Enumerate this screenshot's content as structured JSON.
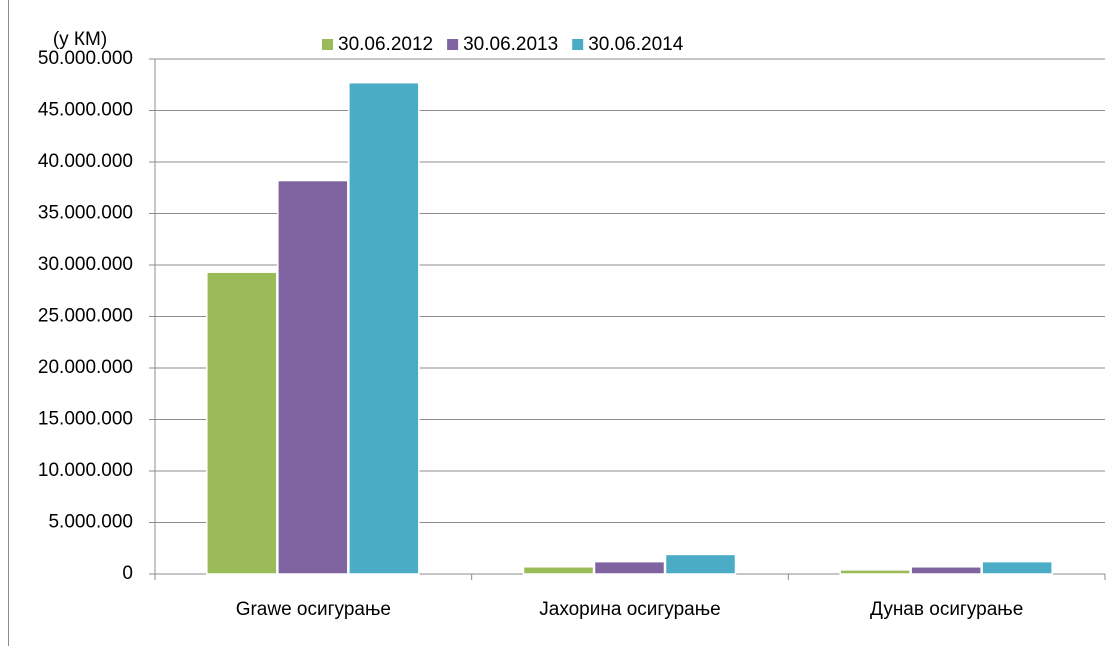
{
  "chart_data": {
    "type": "bar",
    "y_axis_label": "(у КМ)",
    "categories": [
      "Grawe осигурање",
      "Јахорина осигурање",
      "Дунав осигурање"
    ],
    "series": [
      {
        "name": "30.06.2012",
        "color": "#9bbb59",
        "values": [
          29300000,
          700000,
          400000
        ]
      },
      {
        "name": "30.06.2013",
        "color": "#8064a2",
        "values": [
          38200000,
          1200000,
          700000
        ]
      },
      {
        "name": "30.06.2014",
        "color": "#4bacc6",
        "values": [
          47700000,
          1900000,
          1200000
        ]
      }
    ],
    "ylim": [
      0,
      50000000
    ],
    "yticks": [
      0,
      {
        "value": 5000000,
        "label": "5.000.000"
      },
      {
        "value": 10000000,
        "label": "10.000.000"
      },
      {
        "value": 15000000,
        "label": "15.000.000"
      },
      {
        "value": 20000000,
        "label": "20.000.000"
      },
      {
        "value": 25000000,
        "label": "25.000.000"
      },
      {
        "value": 30000000,
        "label": "30.000.000"
      },
      {
        "value": 35000000,
        "label": "35.000.000"
      },
      {
        "value": 40000000,
        "label": "40.000.000"
      },
      {
        "value": 45000000,
        "label": "45.000.000"
      },
      {
        "value": 50000000,
        "label": "50.000.000"
      }
    ],
    "grid": true,
    "legend": "top"
  }
}
